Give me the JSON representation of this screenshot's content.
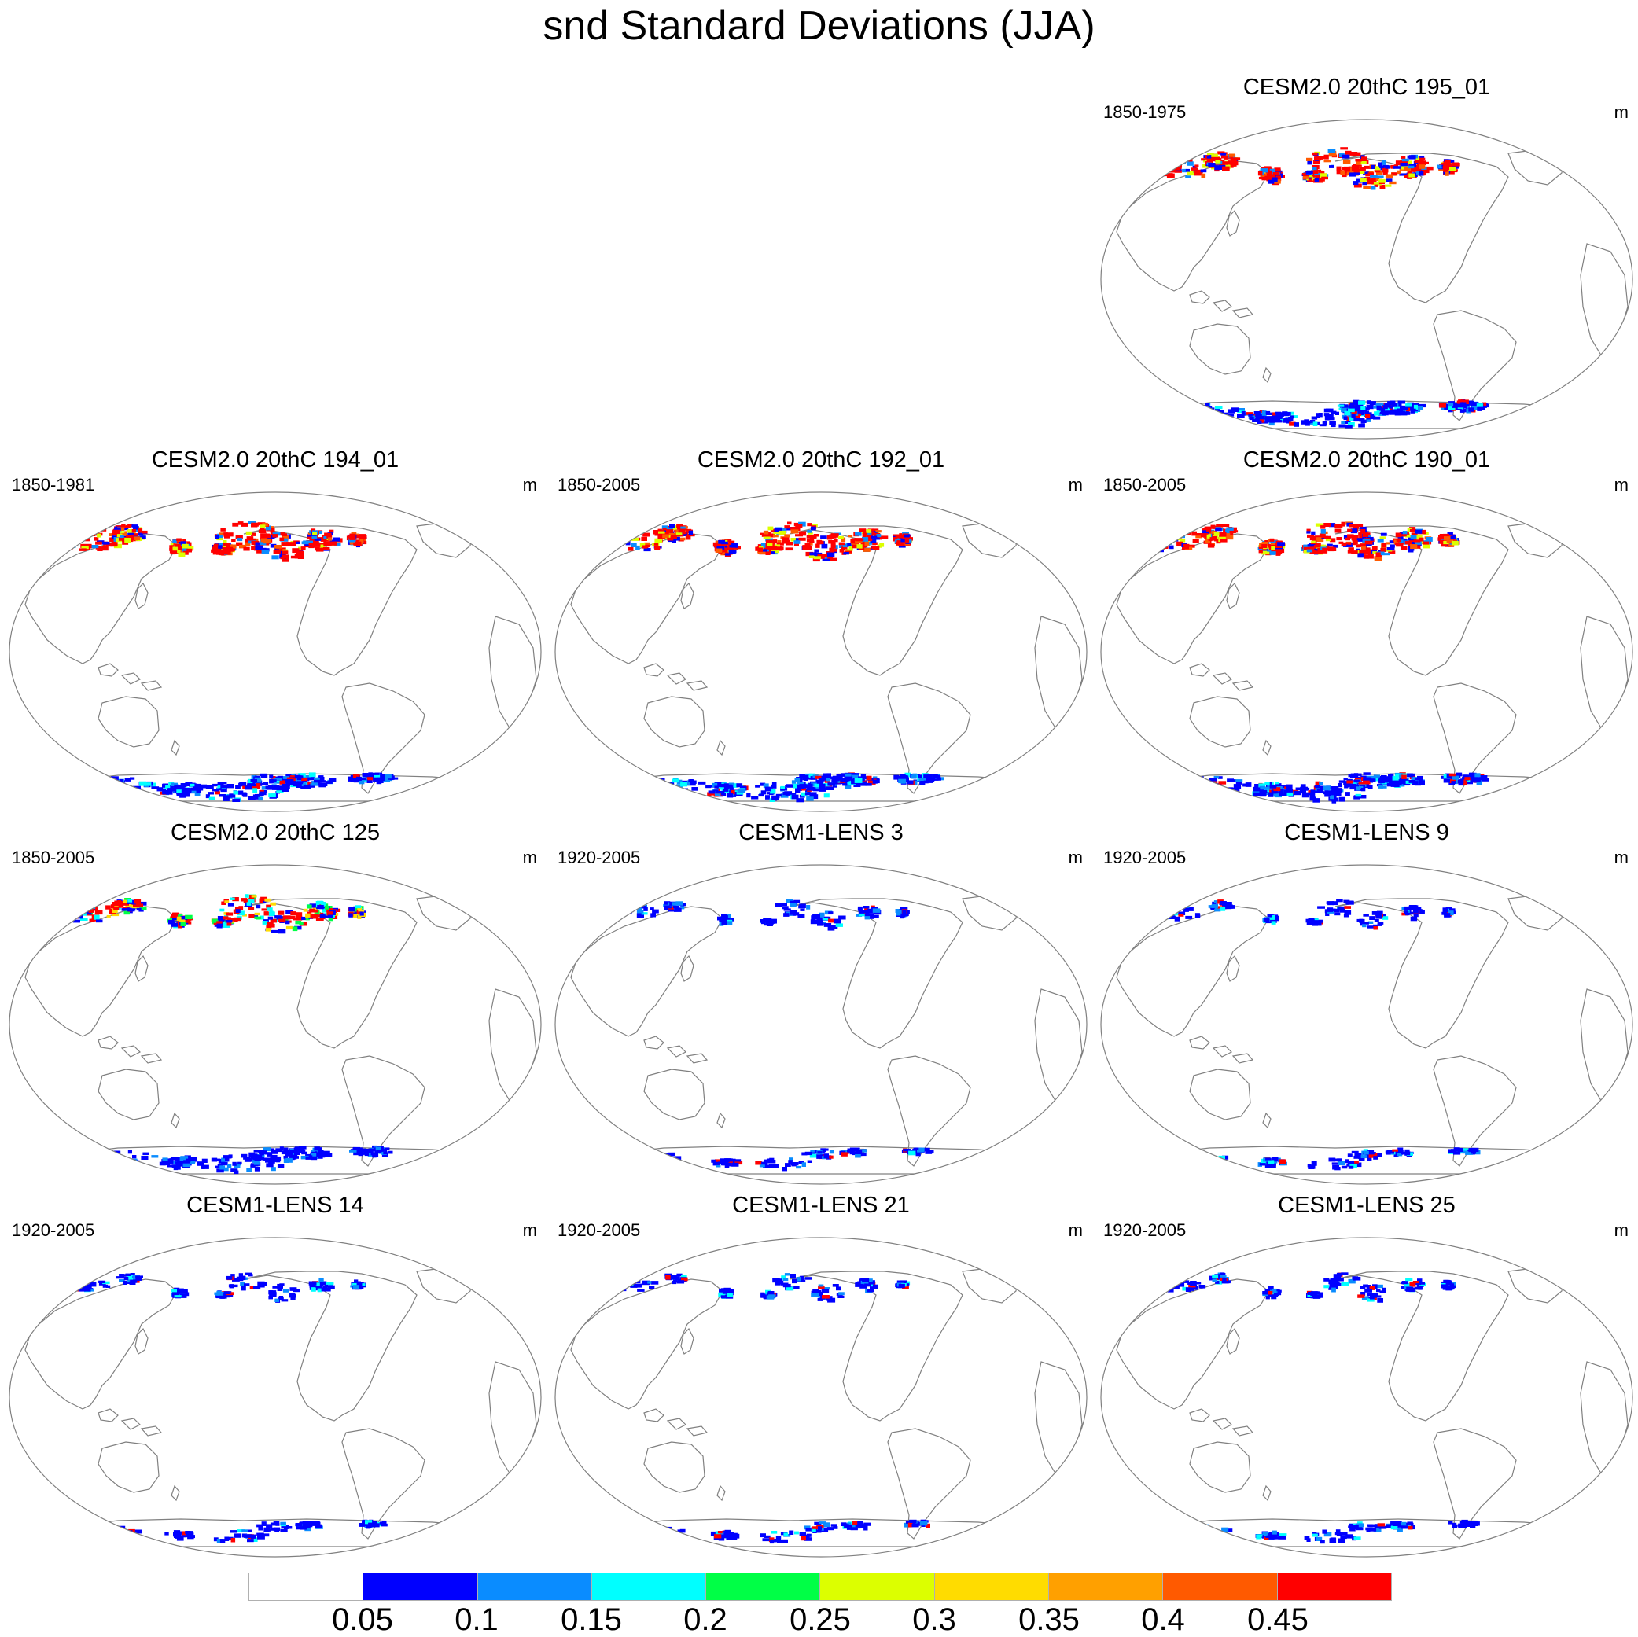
{
  "title": "snd Standard Deviations (JJA)",
  "colors": {
    "outline": "#808080",
    "levels": [
      "#ffffff",
      "#0000ff",
      "#0a8cff",
      "#00ffff",
      "#00ff46",
      "#dcff00",
      "#ffdc00",
      "#ffa000",
      "#ff5a00",
      "#ff0000"
    ]
  },
  "panels": [
    {
      "title": "CESM2.0 20thC 195_01",
      "period": "1850-1975",
      "unit": "m",
      "pattern": "strong"
    },
    {
      "title": "CESM2.0 20thC 194_01",
      "period": "1850-1981",
      "unit": "m",
      "pattern": "strong"
    },
    {
      "title": "CESM2.0 20thC 192_01",
      "period": "1850-2005",
      "unit": "m",
      "pattern": "strong"
    },
    {
      "title": "CESM2.0 20thC 190_01",
      "period": "1850-2005",
      "unit": "m",
      "pattern": "strong"
    },
    {
      "title": "CESM2.0 20thC 125",
      "period": "1850-2005",
      "unit": "m",
      "pattern": "medium"
    },
    {
      "title": "CESM1-LENS 3",
      "period": "1920-2005",
      "unit": "m",
      "pattern": "weak"
    },
    {
      "title": "CESM1-LENS 9",
      "period": "1920-2005",
      "unit": "m",
      "pattern": "weak"
    },
    {
      "title": "CESM1-LENS 14",
      "period": "1920-2005",
      "unit": "m",
      "pattern": "weak"
    },
    {
      "title": "CESM1-LENS 21",
      "period": "1920-2005",
      "unit": "m",
      "pattern": "weak"
    },
    {
      "title": "CESM1-LENS 25",
      "period": "1920-2005",
      "unit": "m",
      "pattern": "weak"
    }
  ],
  "colorbar": {
    "ticks": [
      "0.05",
      "0.1",
      "0.15",
      "0.2",
      "0.25",
      "0.3",
      "0.35",
      "0.4",
      "0.45"
    ]
  }
}
